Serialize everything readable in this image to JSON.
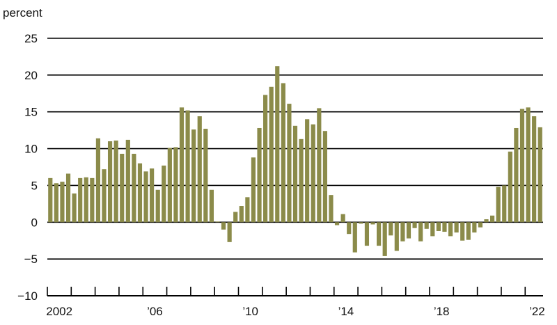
{
  "chart_data": {
    "type": "bar",
    "ylabel": "percent",
    "ylim": [
      -10,
      25
    ],
    "y_ticks": [
      "25",
      "20",
      "15",
      "10",
      "5",
      "0",
      "−5",
      "−10"
    ],
    "y_tick_values": [
      25,
      20,
      15,
      10,
      5,
      0,
      -5,
      -10
    ],
    "x_tick_labels": [
      "2002",
      "’06",
      "’10",
      "’14",
      "’18",
      "’22"
    ],
    "x_tick_years": [
      2002,
      2006,
      2010,
      2014,
      2018,
      2022
    ],
    "grid": "horizontal",
    "frequency": "quarterly",
    "start_period": "2002-Q1",
    "bar_color": "#8b8b4a",
    "values": [
      6.0,
      5.3,
      5.5,
      6.6,
      3.9,
      6.0,
      6.1,
      6.0,
      11.4,
      7.2,
      11.0,
      11.1,
      9.3,
      11.2,
      9.3,
      8.0,
      6.9,
      7.3,
      4.4,
      7.7,
      10.1,
      10.2,
      15.6,
      15.2,
      12.6,
      14.4,
      12.7,
      4.4,
      0.1,
      -1.0,
      -2.7,
      1.4,
      2.2,
      3.4,
      8.8,
      12.8,
      17.3,
      18.4,
      21.2,
      18.9,
      16.1,
      13.1,
      11.3,
      14.0,
      13.3,
      15.5,
      12.4,
      3.7,
      -0.4,
      1.1,
      -1.6,
      -4.1,
      -0.2,
      -3.2,
      -0.3,
      -3.2,
      -4.6,
      -1.8,
      -3.9,
      -2.6,
      -2.2,
      -0.8,
      -2.6,
      -0.9,
      -1.9,
      -1.2,
      -1.3,
      -1.9,
      -1.4,
      -2.5,
      -2.4,
      -1.4,
      -0.7,
      0.4,
      0.9,
      4.8,
      5.0,
      9.6,
      12.8,
      15.4,
      15.6,
      14.4,
      12.9
    ]
  }
}
